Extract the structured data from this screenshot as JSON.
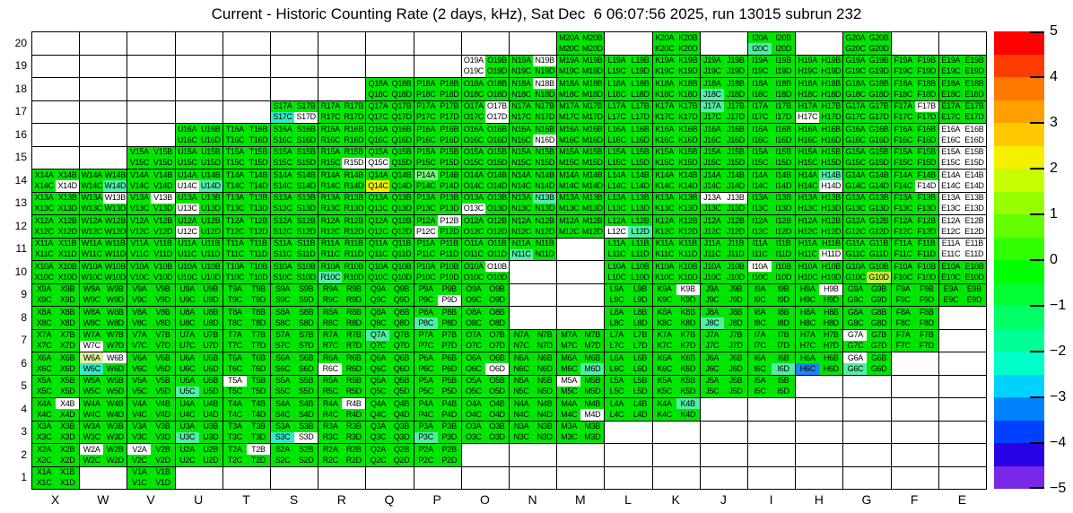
{
  "title": "Current - Historic Counting Rate (2 days, kHz), Sat Dec  6 06:07:56 2025, run 13015 subrun 232",
  "axes": {
    "x_labels": [
      "X",
      "W",
      "V",
      "U",
      "T",
      "S",
      "R",
      "Q",
      "P",
      "O",
      "N",
      "M",
      "L",
      "K",
      "J",
      "I",
      "H",
      "G",
      "F",
      "E"
    ],
    "y_labels": [
      "20",
      "19",
      "18",
      "17",
      "16",
      "15",
      "14",
      "13",
      "12",
      "11",
      "10",
      "9",
      "8",
      "7",
      "6",
      "5",
      "4",
      "3",
      "2",
      "1"
    ]
  },
  "palette": {
    "green": "#00E600",
    "white": "#FFFFFF",
    "cyanGreen": "#4FEFA5",
    "cyan": "#30EBC6",
    "lightGreen": "#7CF37C",
    "paleYellow": "#DDF2A0",
    "yellowGreen": "#C6EF3C",
    "yellow": "#F2EF00",
    "blue": "#1E82F5"
  },
  "colorbar": {
    "tick_labels": [
      "5",
      "4",
      "3",
      "2",
      "1",
      "0",
      "−1",
      "−2",
      "−3",
      "−4",
      "−5"
    ],
    "colors": [
      "#FF0000",
      "#FF3C00",
      "#FF7800",
      "#FFA000",
      "#FFC800",
      "#F5F000",
      "#C8FF00",
      "#96FF00",
      "#64FF00",
      "#32FF00",
      "#00FF00",
      "#00FF32",
      "#00FF64",
      "#00FF96",
      "#00FFC8",
      "#00D2FF",
      "#0082FF",
      "#0041FF",
      "#2800E6",
      "#7828E6"
    ]
  },
  "chart_data": {
    "type": "heatmap",
    "columns": [
      "X",
      "W",
      "V",
      "U",
      "T",
      "S",
      "R",
      "Q",
      "P",
      "O",
      "N",
      "M",
      "L",
      "K",
      "J",
      "I",
      "H",
      "G",
      "F",
      "E"
    ],
    "rows": [
      20,
      19,
      18,
      17,
      16,
      15,
      14,
      13,
      12,
      11,
      10,
      9,
      8,
      7,
      6,
      5,
      4,
      3,
      2,
      1
    ],
    "channel_suffixes": [
      "A",
      "B",
      "C",
      "D"
    ],
    "label_pattern": "{column}{row}{channel}",
    "value_range": [
      -5,
      5
    ],
    "value_unit": "kHz",
    "default_color": "green",
    "empty_color": "white",
    "palette_value_estimates": {
      "green": 0.25,
      "lightGreen": 0.5,
      "cyanGreen": -0.75,
      "cyan": -1.25,
      "paleYellow": 2.0,
      "yellowGreen": 2.3,
      "yellow": 2.8,
      "blue": -2.5,
      "white": null
    },
    "present": {
      "20": [
        "M",
        "K",
        "I",
        "G"
      ],
      "19": [
        "O",
        "N",
        "M",
        "L",
        "K",
        "J",
        "I",
        "H",
        "G",
        "F",
        "E"
      ],
      "18": [
        "Q",
        "P",
        "O",
        "N",
        "M",
        "L",
        "K",
        "J",
        "I",
        "H",
        "G",
        "F",
        "E"
      ],
      "17": [
        "S",
        "R",
        "Q",
        "P",
        "O",
        "N",
        "M",
        "L",
        "K",
        "J",
        "I",
        "H",
        "G",
        "F",
        "E"
      ],
      "16": [
        "U",
        "T",
        "S",
        "R",
        "Q",
        "P",
        "O",
        "N",
        "M",
        "L",
        "K",
        "J",
        "I",
        "H",
        "G",
        "F",
        "E"
      ],
      "15": [
        "V",
        "U",
        "T",
        "S",
        "R",
        "Q",
        "P",
        "O",
        "N",
        "M",
        "L",
        "K",
        "J",
        "I",
        "H",
        "G",
        "F",
        "E"
      ],
      "14": [
        "X",
        "W",
        "V",
        "U",
        "T",
        "S",
        "R",
        "Q",
        "P",
        "O",
        "N",
        "M",
        "L",
        "K",
        "J",
        "I",
        "H",
        "G",
        "F",
        "E"
      ],
      "13": [
        "X",
        "W",
        "V",
        "U",
        "T",
        "S",
        "R",
        "Q",
        "P",
        "O",
        "N",
        "M",
        "L",
        "K",
        "J",
        "I",
        "H",
        "G",
        "F",
        "E"
      ],
      "12": [
        "X",
        "W",
        "V",
        "U",
        "T",
        "S",
        "R",
        "Q",
        "P",
        "O",
        "N",
        "M",
        "L",
        "K",
        "J",
        "I",
        "H",
        "G",
        "F",
        "E"
      ],
      "11": [
        "X",
        "W",
        "V",
        "U",
        "T",
        "S",
        "R",
        "Q",
        "P",
        "O",
        "N",
        "L",
        "K",
        "J",
        "I",
        "H",
        "G",
        "F",
        "E"
      ],
      "10": [
        "X",
        "W",
        "V",
        "U",
        "T",
        "S",
        "R",
        "Q",
        "P",
        "O",
        "L",
        "K",
        "J",
        "I",
        "H",
        "G",
        "F",
        "E"
      ],
      "9": [
        "X",
        "W",
        "V",
        "U",
        "T",
        "S",
        "R",
        "Q",
        "P",
        "O",
        "L",
        "K",
        "J",
        "I",
        "H",
        "G",
        "F",
        "E"
      ],
      "8": [
        "X",
        "W",
        "V",
        "U",
        "T",
        "S",
        "R",
        "Q",
        "P",
        "O",
        "L",
        "K",
        "J",
        "I",
        "H",
        "G",
        "F"
      ],
      "7": [
        "X",
        "W",
        "V",
        "U",
        "T",
        "S",
        "R",
        "Q",
        "P",
        "O",
        "N",
        "M",
        "L",
        "K",
        "J",
        "I",
        "H",
        "G",
        "F"
      ],
      "6": [
        "X",
        "W",
        "V",
        "U",
        "T",
        "S",
        "R",
        "Q",
        "P",
        "O",
        "N",
        "M",
        "L",
        "K",
        "J",
        "I",
        "H",
        "G"
      ],
      "5": [
        "X",
        "W",
        "V",
        "U",
        "T",
        "S",
        "R",
        "Q",
        "P",
        "O",
        "N",
        "M",
        "L",
        "K",
        "J",
        "I"
      ],
      "4": [
        "X",
        "W",
        "V",
        "U",
        "T",
        "S",
        "R",
        "Q",
        "P",
        "O",
        "N",
        "M",
        "L",
        "K"
      ],
      "3": [
        "X",
        "W",
        "V",
        "U",
        "T",
        "S",
        "R",
        "Q",
        "P",
        "O",
        "N",
        "M"
      ],
      "2": [
        "X",
        "W",
        "V",
        "U",
        "T",
        "S",
        "R",
        "Q",
        "P"
      ],
      "1": [
        "X",
        "V"
      ]
    },
    "special_channels": {
      "I20C": "cyanGreen",
      "O19A": "white",
      "O19C": "white",
      "N19B": "white",
      "N18B": "white",
      "J18C": "cyanGreen",
      "S17C": "cyan",
      "S17D": "white",
      "O17B": "white",
      "O17D": "white",
      "H17C": "white",
      "F17B": "white",
      "J17A": "cyanGreen",
      "N16D": "white",
      "E16A": "white",
      "E16B": "white",
      "E16C": "white",
      "E16D": "white",
      "R15D": "white",
      "Q15C": "white",
      "E15A": "white",
      "E15B": "white",
      "E15C": "white",
      "E15D": "white",
      "X14D": "white",
      "W14D": "cyanGreen",
      "U14C": "white",
      "U14D": "cyanGreen",
      "Q14C": "yellow",
      "P14A": "lightGreen",
      "H14B": "cyanGreen",
      "H14D": "white",
      "F14D": "white",
      "E14A": "white",
      "E14B": "white",
      "E14C": "white",
      "E14D": "white",
      "W13B": "white",
      "V13B": "white",
      "U13C": "white",
      "O13C": "white",
      "N13B": "cyanGreen",
      "J13A": "white",
      "J13B": "white",
      "E13A": "white",
      "E13B": "white",
      "E13C": "white",
      "E13D": "white",
      "U12C": "white",
      "P12B": "white",
      "P12C": "white",
      "L12C": "white",
      "L12D": "cyanGreen",
      "E12A": "white",
      "E12B": "white",
      "E12C": "white",
      "E12D": "white",
      "N11C": "cyanGreen",
      "H11D": "white",
      "E11A": "white",
      "E11B": "white",
      "E11C": "white",
      "E11D": "white",
      "O10B": "white",
      "I10A": "white",
      "R10C": "cyanGreen",
      "G10D": "yellowGreen",
      "P9D": "white",
      "K9B": "white",
      "H9B": "white",
      "P8C": "cyanGreen",
      "J8C": "cyanGreen",
      "W7C": "white",
      "Q7A": "cyanGreen",
      "G7A": "white",
      "W6A": "paleYellow",
      "W6B": "white",
      "W6C": "cyan",
      "R6C": "white",
      "O6D": "white",
      "M6D": "cyanGreen",
      "I6D": "cyanGreen",
      "H6C": "blue",
      "G6A": "white",
      "G6C": "cyanGreen",
      "U5C": "cyanGreen",
      "T5A": "white",
      "M5A": "white",
      "X4B": "white",
      "R4B": "white",
      "M4D": "white",
      "K4B": "cyanGreen",
      "U3C": "cyanGreen",
      "S3C": "cyan",
      "S3D": "white",
      "P3C": "cyanGreen",
      "W2A": "white",
      "V2A": "white",
      "T2B": "white"
    }
  }
}
